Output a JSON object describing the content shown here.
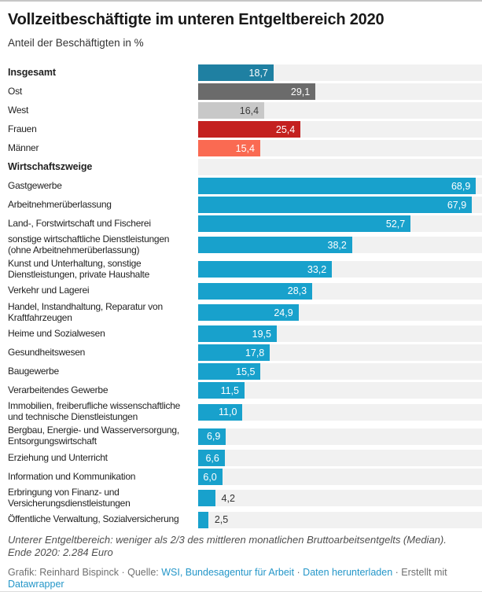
{
  "colors": {
    "total_teal": "#1f80a2",
    "ost_dark_gray": "#6b6b6b",
    "west_light_gray": "#c8c8c8",
    "frauen_red": "#c4201f",
    "maenner_salmon": "#fa6a52",
    "industry_blue": "#18a1cc",
    "track_gray": "#f1f1f1",
    "link_blue": "#2496c8"
  },
  "chart_data": {
    "type": "bar",
    "orientation": "horizontal",
    "title": "Vollzeitbeschäftigte im unteren Entgeltbereich 2020",
    "subtitle": "Anteil der Beschäftigten in %",
    "unit": "%",
    "xlim": [
      0,
      70.4
    ],
    "grid": false,
    "legend": false,
    "rows": [
      {
        "label_lines": [
          "Insgesamt"
        ],
        "value": 18.7,
        "display": "18,7",
        "color": "#1f80a2",
        "bold": true
      },
      {
        "label_lines": [
          "Ost"
        ],
        "value": 29.1,
        "display": "29,1",
        "color": "#6b6b6b"
      },
      {
        "label_lines": [
          "West"
        ],
        "value": 16.4,
        "display": "16,4",
        "color": "#c8c8c8",
        "value_dark": true
      },
      {
        "label_lines": [
          "Frauen"
        ],
        "value": 25.4,
        "display": "25,4",
        "color": "#c4201f"
      },
      {
        "label_lines": [
          "Männer"
        ],
        "value": 15.4,
        "display": "15,4",
        "color": "#fa6a52"
      },
      {
        "label_lines": [
          "Wirtschaftszweige"
        ],
        "header": true,
        "bold": true
      },
      {
        "label_lines": [
          "Gastgewerbe"
        ],
        "value": 68.9,
        "display": "68,9",
        "color": "#18a1cc"
      },
      {
        "label_lines": [
          "Arbeitnehmerüberlassung"
        ],
        "value": 67.9,
        "display": "67,9",
        "color": "#18a1cc"
      },
      {
        "label_lines": [
          "Land-, Forstwirtschaft und Fischerei"
        ],
        "value": 52.7,
        "display": "52,7",
        "color": "#18a1cc"
      },
      {
        "label_lines": [
          "sonstige wirtschaftliche Dienstleistungen",
          "(ohne Arbeitnehmerüberlassung)"
        ],
        "value": 38.2,
        "display": "38,2",
        "color": "#18a1cc"
      },
      {
        "label_lines": [
          "Kunst und Unterhaltung, sonstige",
          "Dienstleistungen, private Haushalte"
        ],
        "value": 33.2,
        "display": "33,2",
        "color": "#18a1cc"
      },
      {
        "label_lines": [
          "Verkehr und Lagerei"
        ],
        "value": 28.3,
        "display": "28,3",
        "color": "#18a1cc"
      },
      {
        "label_lines": [
          "Handel, Instandhaltung, Reparatur von",
          "Kraftfahrzeugen"
        ],
        "value": 24.9,
        "display": "24,9",
        "color": "#18a1cc"
      },
      {
        "label_lines": [
          "Heime und Sozialwesen"
        ],
        "value": 19.5,
        "display": "19,5",
        "color": "#18a1cc"
      },
      {
        "label_lines": [
          "Gesundheitswesen"
        ],
        "value": 17.8,
        "display": "17,8",
        "color": "#18a1cc"
      },
      {
        "label_lines": [
          "Baugewerbe"
        ],
        "value": 15.5,
        "display": "15,5",
        "color": "#18a1cc"
      },
      {
        "label_lines": [
          "Verarbeitendes Gewerbe"
        ],
        "value": 11.5,
        "display": "11,5",
        "color": "#18a1cc"
      },
      {
        "label_lines": [
          "Immobilien, freiberufliche wissenschaftliche",
          "und technische Dienstleistungen"
        ],
        "value": 11.0,
        "display": "11,0",
        "color": "#18a1cc"
      },
      {
        "label_lines": [
          "Bergbau, Energie- und Wasserversorgung,",
          "Entsorgungswirtschaft"
        ],
        "value": 6.9,
        "display": "6,9",
        "color": "#18a1cc"
      },
      {
        "label_lines": [
          "Erziehung und Unterricht"
        ],
        "value": 6.6,
        "display": "6,6",
        "color": "#18a1cc"
      },
      {
        "label_lines": [
          "Information und Kommunikation"
        ],
        "value": 6.0,
        "display": "6,0",
        "color": "#18a1cc"
      },
      {
        "label_lines": [
          "Erbringung von Finanz- und",
          "Versicherungsdienstleistungen"
        ],
        "value": 4.2,
        "display": "4,2",
        "color": "#18a1cc",
        "value_outside": true
      },
      {
        "label_lines": [
          "Öffentliche Verwaltung, Sozialversicherung"
        ],
        "value": 2.5,
        "display": "2,5",
        "color": "#18a1cc",
        "value_outside": true
      }
    ]
  },
  "footer": {
    "note": "Unterer Entgeltbereich: weniger als 2/3 des mittleren monatlichen Bruttoarbeitsentgelts (Median). Ende 2020: 2.284 Euro",
    "credits": [
      {
        "text": "Grafik: Reinhard Bispinck · Quelle: ",
        "link": false
      },
      {
        "text": "WSI, Bundesagentur für Arbeit",
        "link": true
      },
      {
        "text": " · ",
        "link": false
      },
      {
        "text": "Daten herunterladen",
        "link": true
      },
      {
        "text": " · Erstellt mit ",
        "link": false
      },
      {
        "text": "Datawrapper",
        "link": true
      }
    ]
  }
}
